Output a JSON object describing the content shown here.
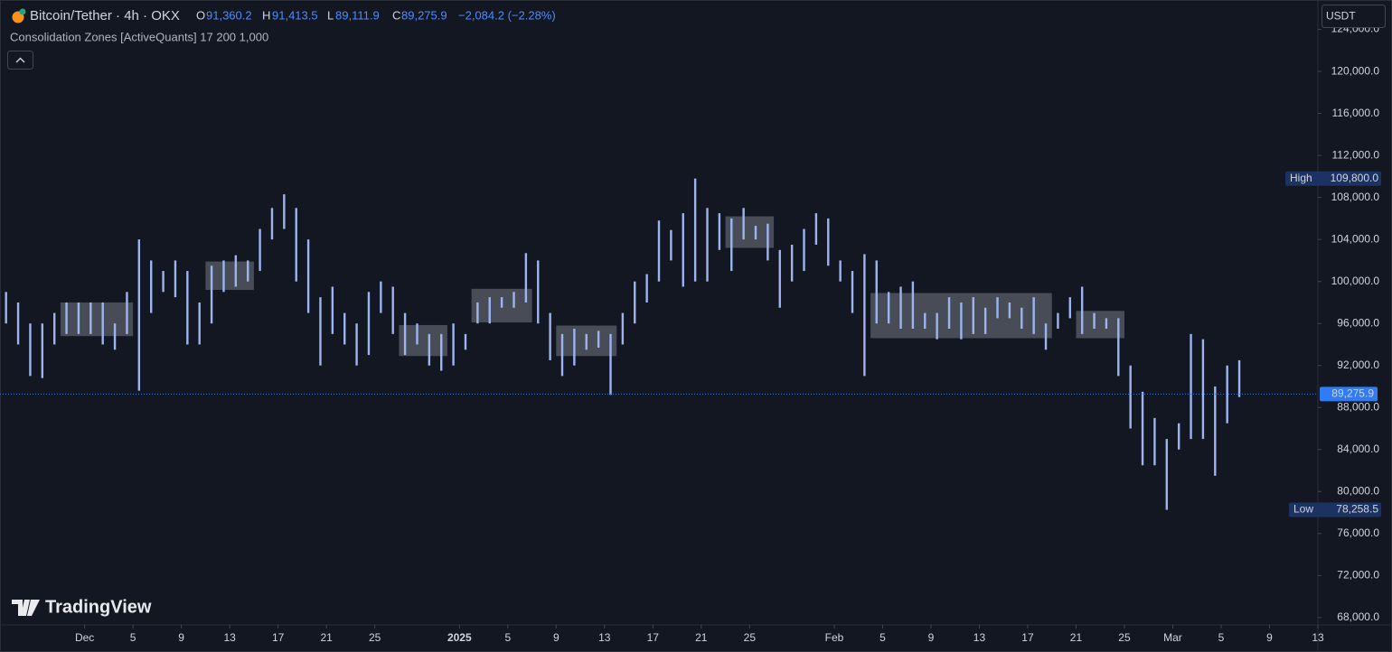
{
  "header": {
    "symbol": "Bitcoin/Tether · 4h · OKX",
    "open_label": "O",
    "open": "91,360.2",
    "high_label": "H",
    "high": "91,413.5",
    "low_label": "L",
    "low": "89,111.9",
    "close_label": "C",
    "close": "89,275.9",
    "change": "−2,084.2 (−2.28%)",
    "indicator": "Consolidation Zones [ActiveQuants] 17 200 1,000",
    "currency": "USDT",
    "brand": "TradingView"
  },
  "chart_data": {
    "type": "ohlc",
    "color": "#9db4f0",
    "xlim": [
      "2024-11-24",
      "2025-03-13"
    ],
    "xticks": [
      {
        "value": "2024-12-01",
        "label": "Dec"
      },
      {
        "value": "2024-12-05",
        "label": "5"
      },
      {
        "value": "2024-12-09",
        "label": "9"
      },
      {
        "value": "2024-12-13",
        "label": "13"
      },
      {
        "value": "2024-12-17",
        "label": "17"
      },
      {
        "value": "2024-12-21",
        "label": "21"
      },
      {
        "value": "2024-12-25",
        "label": "25"
      },
      {
        "value": "2025-01-01",
        "label": "2025"
      },
      {
        "value": "2025-01-05",
        "label": "5"
      },
      {
        "value": "2025-01-09",
        "label": "9"
      },
      {
        "value": "2025-01-13",
        "label": "13"
      },
      {
        "value": "2025-01-17",
        "label": "17"
      },
      {
        "value": "2025-01-21",
        "label": "21"
      },
      {
        "value": "2025-01-25",
        "label": "25"
      },
      {
        "value": "2025-02-01",
        "label": "Feb"
      },
      {
        "value": "2025-02-05",
        "label": "5"
      },
      {
        "value": "2025-02-09",
        "label": "9"
      },
      {
        "value": "2025-02-13",
        "label": "13"
      },
      {
        "value": "2025-02-17",
        "label": "17"
      },
      {
        "value": "2025-02-21",
        "label": "21"
      },
      {
        "value": "2025-02-25",
        "label": "25"
      },
      {
        "value": "2025-03-01",
        "label": "Mar"
      },
      {
        "value": "2025-03-05",
        "label": "5"
      },
      {
        "value": "2025-03-09",
        "label": "9"
      },
      {
        "value": "2025-03-13",
        "label": "13"
      }
    ],
    "ylim": [
      67300,
      126800
    ],
    "yticks": [
      {
        "value": 68000,
        "label": "68,000.0"
      },
      {
        "value": 72000,
        "label": "72,000.0"
      },
      {
        "value": 76000,
        "label": "76,000.0"
      },
      {
        "value": 80000,
        "label": "80,000.0"
      },
      {
        "value": 84000,
        "label": "84,000.0"
      },
      {
        "value": 88000,
        "label": "88,000.0"
      },
      {
        "value": 92000,
        "label": "92,000.0"
      },
      {
        "value": 96000,
        "label": "96,000.0"
      },
      {
        "value": 100000,
        "label": "100,000.0"
      },
      {
        "value": 104000,
        "label": "104,000.0"
      },
      {
        "value": 108000,
        "label": "108,000.0"
      },
      {
        "value": 112000,
        "label": "112,000.0"
      },
      {
        "value": 116000,
        "label": "116,000.0"
      },
      {
        "value": 120000,
        "label": "120,000.0"
      },
      {
        "value": 124000,
        "label": "124,000.0"
      }
    ],
    "x": [
      "2024-11-24",
      "2024-11-25",
      "2024-11-26",
      "2024-11-27",
      "2024-11-28",
      "2024-11-29",
      "2024-11-30",
      "2024-12-01",
      "2024-12-02",
      "2024-12-03",
      "2024-12-04",
      "2024-12-05",
      "2024-12-06",
      "2024-12-07",
      "2024-12-08",
      "2024-12-09",
      "2024-12-10",
      "2024-12-11",
      "2024-12-12",
      "2024-12-13",
      "2024-12-14",
      "2024-12-15",
      "2024-12-16",
      "2024-12-17",
      "2024-12-18",
      "2024-12-19",
      "2024-12-20",
      "2024-12-21",
      "2024-12-22",
      "2024-12-23",
      "2024-12-24",
      "2024-12-25",
      "2024-12-26",
      "2024-12-27",
      "2024-12-28",
      "2024-12-29",
      "2024-12-30",
      "2024-12-31",
      "2025-01-01",
      "2025-01-02",
      "2025-01-03",
      "2025-01-04",
      "2025-01-05",
      "2025-01-06",
      "2025-01-07",
      "2025-01-08",
      "2025-01-09",
      "2025-01-10",
      "2025-01-11",
      "2025-01-12",
      "2025-01-13",
      "2025-01-14",
      "2025-01-15",
      "2025-01-16",
      "2025-01-17",
      "2025-01-18",
      "2025-01-19",
      "2025-01-20",
      "2025-01-21",
      "2025-01-22",
      "2025-01-23",
      "2025-01-24",
      "2025-01-25",
      "2025-01-26",
      "2025-01-27",
      "2025-01-28",
      "2025-01-29",
      "2025-01-30",
      "2025-01-31",
      "2025-02-01",
      "2025-02-02",
      "2025-02-03",
      "2025-02-04",
      "2025-02-05",
      "2025-02-06",
      "2025-02-07",
      "2025-02-08",
      "2025-02-09",
      "2025-02-10",
      "2025-02-11",
      "2025-02-12",
      "2025-02-13",
      "2025-02-14",
      "2025-02-15",
      "2025-02-16",
      "2025-02-17",
      "2025-02-18",
      "2025-02-19",
      "2025-02-20",
      "2025-02-21",
      "2025-02-22",
      "2025-02-23",
      "2025-02-24",
      "2025-02-25",
      "2025-02-26",
      "2025-02-27",
      "2025-02-28",
      "2025-03-01",
      "2025-03-02",
      "2025-03-03",
      "2025-03-04",
      "2025-03-05",
      "2025-03-06"
    ],
    "highs": [
      99000,
      98000,
      96000,
      96000,
      97000,
      98000,
      98000,
      98000,
      98000,
      96000,
      99000,
      104000,
      102000,
      101000,
      102000,
      101000,
      98000,
      101500,
      102000,
      102500,
      102000,
      105000,
      107000,
      108300,
      107000,
      104000,
      98500,
      99500,
      97000,
      96000,
      99000,
      100000,
      99500,
      97000,
      96000,
      95000,
      95000,
      96000,
      95000,
      98000,
      98500,
      98500,
      99000,
      102700,
      102000,
      97000,
      95000,
      95500,
      95000,
      95300,
      95000,
      97000,
      100000,
      100700,
      105800,
      104900,
      106500,
      109800,
      107000,
      106500,
      106000,
      107000,
      105300,
      105500,
      103000,
      103500,
      105000,
      106500,
      106000,
      102000,
      101000,
      102600,
      102000,
      99000,
      99500,
      100000,
      97000,
      97000,
      98500,
      98000,
      98500,
      97500,
      98500,
      98000,
      97500,
      98500,
      96000,
      97000,
      98500,
      99500,
      97000,
      96500,
      96500,
      92000,
      89500,
      87000,
      85000,
      86500,
      95000,
      94500,
      90000,
      92000,
      92500
    ],
    "lows": [
      96000,
      94000,
      91000,
      90800,
      94000,
      95000,
      95000,
      95000,
      94000,
      93500,
      95000,
      89600,
      97000,
      99000,
      98500,
      94000,
      94000,
      96000,
      99000,
      99500,
      100000,
      101000,
      104000,
      105000,
      100000,
      97000,
      92000,
      95000,
      94000,
      92000,
      93000,
      97000,
      95000,
      93000,
      94000,
      92000,
      91500,
      92000,
      93500,
      96000,
      96000,
      97500,
      97500,
      98000,
      96000,
      92500,
      91000,
      92000,
      93500,
      93700,
      89200,
      94000,
      96000,
      98000,
      100000,
      102000,
      99500,
      100000,
      100000,
      103000,
      101000,
      104000,
      104000,
      102000,
      97500,
      100000,
      101000,
      103500,
      101500,
      100000,
      97000,
      91000,
      96000,
      96000,
      95500,
      95500,
      95500,
      94500,
      95500,
      94500,
      95000,
      95000,
      96500,
      96500,
      95500,
      95000,
      93500,
      95500,
      96500,
      95000,
      95500,
      95500,
      91000,
      86000,
      82500,
      82500,
      78258.5,
      84000,
      85000,
      85000,
      81500,
      86500,
      89000
    ],
    "zones": {
      "color": "#8a8d96",
      "start": [
        "2024-11-29",
        "2024-12-11",
        "2024-12-27",
        "2025-01-02",
        "2025-01-09",
        "2025-01-23",
        "2025-02-04",
        "2025-02-21"
      ],
      "end": [
        "2024-12-04",
        "2024-12-14",
        "2024-12-30",
        "2025-01-06",
        "2025-01-13",
        "2025-01-26",
        "2025-02-18",
        "2025-02-24"
      ],
      "top": [
        98000,
        101900,
        95850,
        99300,
        95800,
        106200,
        98900,
        97200
      ],
      "bottom": [
        94800,
        99200,
        92900,
        96100,
        92900,
        103200,
        94600,
        94600
      ]
    },
    "high_marker": {
      "name": "High",
      "value": 109800,
      "label": "109,800.0"
    },
    "low_marker": {
      "name": "Low",
      "value": 78258.5,
      "label": "78,258.5"
    },
    "last_price": {
      "value": 89275.9,
      "label": "89,275.9",
      "color": "#2f7cf6"
    }
  }
}
